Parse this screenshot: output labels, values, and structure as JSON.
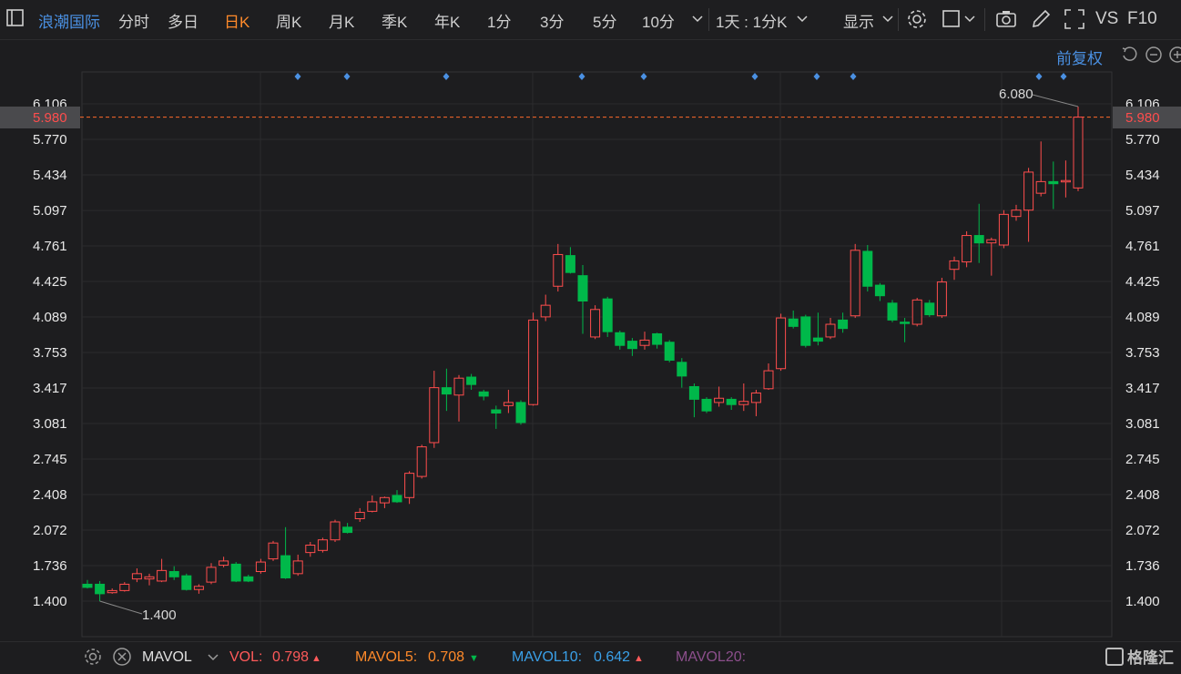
{
  "toolbar": {
    "stock_name": "浪潮国际",
    "tabs": [
      {
        "label": "分时",
        "active": false
      },
      {
        "label": "多日",
        "active": false
      },
      {
        "label": "日K",
        "active": true
      },
      {
        "label": "周K",
        "active": false
      },
      {
        "label": "月K",
        "active": false
      },
      {
        "label": "季K",
        "active": false
      },
      {
        "label": "年K",
        "active": false
      },
      {
        "label": "1分",
        "active": false
      },
      {
        "label": "3分",
        "active": false
      },
      {
        "label": "5分",
        "active": false
      },
      {
        "label": "10分",
        "active": false
      }
    ],
    "period_select": "1天 : 1分K",
    "display_label": "显示",
    "vs_label": "VS",
    "f10_label": "F10",
    "icons": [
      "panel-icon",
      "chevron-down-icon",
      "settings-icon",
      "square-icon",
      "camera-icon",
      "pencil-icon",
      "fullscreen-icon"
    ]
  },
  "chart": {
    "adjust_label": "前复权",
    "current_price": "5.980",
    "max_label": "6.080",
    "min_label": "1.400",
    "accent_up": "#ff4d4d",
    "accent_down": "#00b84a",
    "marker_color": "#4a90e2"
  },
  "chart_data": {
    "type": "candlestick",
    "y_ticks": [
      "6.106",
      "5.770",
      "5.434",
      "5.097",
      "4.761",
      "4.425",
      "4.089",
      "3.753",
      "3.417",
      "3.081",
      "2.745",
      "2.408",
      "2.072",
      "1.736",
      "1.400"
    ],
    "ylim": [
      1.4,
      6.106
    ],
    "candles": [
      {
        "o": 1.56,
        "c": 1.53,
        "h": 1.6,
        "l": 1.52
      },
      {
        "o": 1.56,
        "c": 1.47,
        "h": 1.59,
        "l": 1.4
      },
      {
        "o": 1.48,
        "c": 1.5,
        "h": 1.52,
        "l": 1.47
      },
      {
        "o": 1.5,
        "c": 1.56,
        "h": 1.58,
        "l": 1.49
      },
      {
        "o": 1.61,
        "c": 1.66,
        "h": 1.71,
        "l": 1.58
      },
      {
        "o": 1.61,
        "c": 1.63,
        "h": 1.66,
        "l": 1.55
      },
      {
        "o": 1.59,
        "c": 1.69,
        "h": 1.8,
        "l": 1.58
      },
      {
        "o": 1.68,
        "c": 1.63,
        "h": 1.73,
        "l": 1.6
      },
      {
        "o": 1.64,
        "c": 1.51,
        "h": 1.66,
        "l": 1.5
      },
      {
        "o": 1.51,
        "c": 1.54,
        "h": 1.56,
        "l": 1.47
      },
      {
        "o": 1.58,
        "c": 1.72,
        "h": 1.76,
        "l": 1.56
      },
      {
        "o": 1.74,
        "c": 1.78,
        "h": 1.82,
        "l": 1.72
      },
      {
        "o": 1.75,
        "c": 1.59,
        "h": 1.77,
        "l": 1.58
      },
      {
        "o": 1.63,
        "c": 1.59,
        "h": 1.65,
        "l": 1.58
      },
      {
        "o": 1.68,
        "c": 1.77,
        "h": 1.8,
        "l": 1.66
      },
      {
        "o": 1.8,
        "c": 1.95,
        "h": 1.97,
        "l": 1.78
      },
      {
        "o": 1.83,
        "c": 1.62,
        "h": 2.1,
        "l": 1.61
      },
      {
        "o": 1.66,
        "c": 1.78,
        "h": 1.84,
        "l": 1.64
      },
      {
        "o": 1.86,
        "c": 1.93,
        "h": 1.96,
        "l": 1.82
      },
      {
        "o": 1.88,
        "c": 1.98,
        "h": 2.0,
        "l": 1.86
      },
      {
        "o": 1.98,
        "c": 2.15,
        "h": 2.17,
        "l": 1.96
      },
      {
        "o": 2.1,
        "c": 2.05,
        "h": 2.14,
        "l": 2.04
      },
      {
        "o": 2.18,
        "c": 2.24,
        "h": 2.28,
        "l": 2.15
      },
      {
        "o": 2.25,
        "c": 2.34,
        "h": 2.4,
        "l": 2.24
      },
      {
        "o": 2.33,
        "c": 2.38,
        "h": 2.39,
        "l": 2.28
      },
      {
        "o": 2.4,
        "c": 2.34,
        "h": 2.45,
        "l": 2.33
      },
      {
        "o": 2.38,
        "c": 2.61,
        "h": 2.63,
        "l": 2.32
      },
      {
        "o": 2.58,
        "c": 2.86,
        "h": 2.88,
        "l": 2.56
      },
      {
        "o": 2.9,
        "c": 3.42,
        "h": 3.58,
        "l": 2.85
      },
      {
        "o": 3.42,
        "c": 3.36,
        "h": 3.6,
        "l": 3.2
      },
      {
        "o": 3.35,
        "c": 3.51,
        "h": 3.54,
        "l": 3.1
      },
      {
        "o": 3.52,
        "c": 3.45,
        "h": 3.55,
        "l": 3.4
      },
      {
        "o": 3.38,
        "c": 3.34,
        "h": 3.4,
        "l": 3.3
      },
      {
        "o": 3.21,
        "c": 3.18,
        "h": 3.25,
        "l": 3.03
      },
      {
        "o": 3.25,
        "c": 3.28,
        "h": 3.4,
        "l": 3.18
      },
      {
        "o": 3.28,
        "c": 3.09,
        "h": 3.3,
        "l": 3.07
      },
      {
        "o": 3.26,
        "c": 4.06,
        "h": 4.13,
        "l": 3.25
      },
      {
        "o": 4.09,
        "c": 4.2,
        "h": 4.3,
        "l": 4.05
      },
      {
        "o": 4.38,
        "c": 4.68,
        "h": 4.78,
        "l": 4.33
      },
      {
        "o": 4.67,
        "c": 4.51,
        "h": 4.75,
        "l": 4.5
      },
      {
        "o": 4.48,
        "c": 4.24,
        "h": 4.58,
        "l": 3.93
      },
      {
        "o": 3.9,
        "c": 4.16,
        "h": 4.2,
        "l": 3.88
      },
      {
        "o": 4.26,
        "c": 3.95,
        "h": 4.28,
        "l": 3.9
      },
      {
        "o": 3.94,
        "c": 3.82,
        "h": 3.96,
        "l": 3.78
      },
      {
        "o": 3.86,
        "c": 3.79,
        "h": 3.89,
        "l": 3.72
      },
      {
        "o": 3.82,
        "c": 3.87,
        "h": 3.95,
        "l": 3.78
      },
      {
        "o": 3.93,
        "c": 3.83,
        "h": 3.94,
        "l": 3.79
      },
      {
        "o": 3.85,
        "c": 3.68,
        "h": 3.87,
        "l": 3.66
      },
      {
        "o": 3.66,
        "c": 3.53,
        "h": 3.7,
        "l": 3.42
      },
      {
        "o": 3.43,
        "c": 3.31,
        "h": 3.46,
        "l": 3.14
      },
      {
        "o": 3.31,
        "c": 3.2,
        "h": 3.33,
        "l": 3.18
      },
      {
        "o": 3.28,
        "c": 3.32,
        "h": 3.43,
        "l": 3.24
      },
      {
        "o": 3.31,
        "c": 3.26,
        "h": 3.33,
        "l": 3.21
      },
      {
        "o": 3.26,
        "c": 3.29,
        "h": 3.46,
        "l": 3.2
      },
      {
        "o": 3.28,
        "c": 3.37,
        "h": 3.4,
        "l": 3.15
      },
      {
        "o": 3.41,
        "c": 3.58,
        "h": 3.65,
        "l": 3.4
      },
      {
        "o": 3.6,
        "c": 4.08,
        "h": 4.12,
        "l": 3.58
      },
      {
        "o": 4.07,
        "c": 4.0,
        "h": 4.15,
        "l": 3.98
      },
      {
        "o": 4.09,
        "c": 3.82,
        "h": 4.11,
        "l": 3.8
      },
      {
        "o": 3.89,
        "c": 3.86,
        "h": 4.13,
        "l": 3.82
      },
      {
        "o": 3.9,
        "c": 4.02,
        "h": 4.08,
        "l": 3.88
      },
      {
        "o": 4.06,
        "c": 3.98,
        "h": 4.13,
        "l": 3.94
      },
      {
        "o": 4.1,
        "c": 4.72,
        "h": 4.78,
        "l": 4.08
      },
      {
        "o": 4.71,
        "c": 4.38,
        "h": 4.77,
        "l": 4.33
      },
      {
        "o": 4.39,
        "c": 4.29,
        "h": 4.41,
        "l": 4.24
      },
      {
        "o": 4.22,
        "c": 4.06,
        "h": 4.25,
        "l": 4.04
      },
      {
        "o": 4.04,
        "c": 4.03,
        "h": 4.08,
        "l": 3.85
      },
      {
        "o": 4.02,
        "c": 4.25,
        "h": 4.27,
        "l": 4.0
      },
      {
        "o": 4.22,
        "c": 4.11,
        "h": 4.25,
        "l": 4.09
      },
      {
        "o": 4.1,
        "c": 4.42,
        "h": 4.46,
        "l": 4.08
      },
      {
        "o": 4.54,
        "c": 4.62,
        "h": 4.66,
        "l": 4.44
      },
      {
        "o": 4.61,
        "c": 4.86,
        "h": 4.9,
        "l": 4.56
      },
      {
        "o": 4.86,
        "c": 4.79,
        "h": 5.16,
        "l": 4.6
      },
      {
        "o": 4.79,
        "c": 4.82,
        "h": 4.84,
        "l": 4.48
      },
      {
        "o": 4.77,
        "c": 5.06,
        "h": 5.1,
        "l": 4.74
      },
      {
        "o": 5.04,
        "c": 5.1,
        "h": 5.15,
        "l": 5.0
      },
      {
        "o": 5.1,
        "c": 5.46,
        "h": 5.5,
        "l": 4.8
      },
      {
        "o": 5.26,
        "c": 5.37,
        "h": 5.75,
        "l": 5.23
      },
      {
        "o": 5.37,
        "c": 5.35,
        "h": 5.56,
        "l": 5.11
      },
      {
        "o": 5.37,
        "c": 5.38,
        "h": 5.57,
        "l": 5.22
      },
      {
        "o": 5.31,
        "c": 5.98,
        "h": 6.08,
        "l": 5.28
      }
    ],
    "markers": [
      9,
      11,
      15,
      20,
      22,
      27,
      30,
      32,
      39,
      40
    ],
    "min_index": 1,
    "max_index": 80
  },
  "volume": {
    "name": "MAVOL",
    "vol_label": "VOL:",
    "vol_value": "0.798",
    "vol_dir": "▲",
    "mavol5_label": "MAVOL5:",
    "mavol5_value": "0.708",
    "mavol5_dir": "▼",
    "mavol10_label": "MAVOL10:",
    "mavol10_value": "0.642",
    "mavol10_dir": "▲",
    "mavol20_label": "MAVOL20:",
    "logo": "格隆汇"
  }
}
